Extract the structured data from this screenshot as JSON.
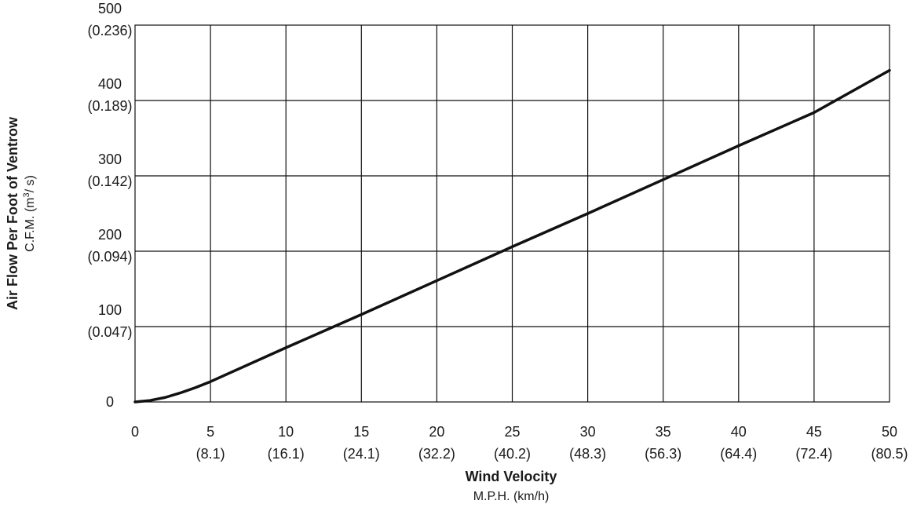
{
  "chart_data": {
    "type": "line",
    "xlabel": "Wind Velocity",
    "xlabel_units": "M.P.H. (km/h)",
    "ylabel": "Air Flow Per Foot of Ventrow",
    "ylabel_units_prefix": "C.F.M. (m",
    "ylabel_units_sup": "3",
    "ylabel_units_suffix": "/ s)",
    "xlim": [
      0,
      50
    ],
    "ylim": [
      0,
      500
    ],
    "grid": true,
    "x_ticks": [
      {
        "value": 0,
        "label": "0",
        "metric": ""
      },
      {
        "value": 5,
        "label": "5",
        "metric": "(8.1)"
      },
      {
        "value": 10,
        "label": "10",
        "metric": "(16.1)"
      },
      {
        "value": 15,
        "label": "15",
        "metric": "(24.1)"
      },
      {
        "value": 20,
        "label": "20",
        "metric": "(32.2)"
      },
      {
        "value": 25,
        "label": "25",
        "metric": "(40.2)"
      },
      {
        "value": 30,
        "label": "30",
        "metric": "(48.3)"
      },
      {
        "value": 35,
        "label": "35",
        "metric": "(56.3)"
      },
      {
        "value": 40,
        "label": "40",
        "metric": "(64.4)"
      },
      {
        "value": 45,
        "label": "45",
        "metric": "(72.4)"
      },
      {
        "value": 50,
        "label": "50",
        "metric": "(80.5)"
      }
    ],
    "y_ticks": [
      {
        "value": 0,
        "label": "0",
        "metric": ""
      },
      {
        "value": 100,
        "label": "100",
        "metric": "(0.047)"
      },
      {
        "value": 200,
        "label": "200",
        "metric": "(0.094)"
      },
      {
        "value": 300,
        "label": "300",
        "metric": "(0.142)"
      },
      {
        "value": 400,
        "label": "400",
        "metric": "(0.189)"
      },
      {
        "value": 500,
        "label": "500",
        "metric": "(0.236)"
      }
    ],
    "series": [
      {
        "x": [
          0,
          1,
          2,
          3,
          4,
          5,
          10,
          15,
          20,
          25,
          30,
          35,
          40,
          45,
          50
        ],
        "y": [
          0,
          2,
          6,
          12,
          19,
          27,
          72,
          116,
          161,
          206,
          250,
          295,
          340,
          384,
          440
        ]
      }
    ]
  }
}
